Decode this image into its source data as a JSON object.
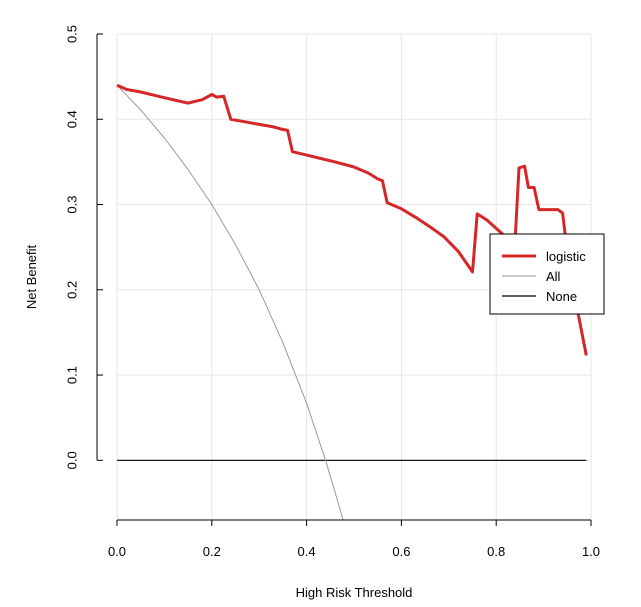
{
  "chart_data": {
    "type": "line",
    "title": "",
    "xlabel": "High Risk Threshold",
    "ylabel": "Net Benefit",
    "xlim": [
      0,
      1
    ],
    "ylim": [
      -0.07,
      0.5
    ],
    "x_ticks": [
      "0.0",
      "0.2",
      "0.4",
      "0.6",
      "0.8",
      "1.0"
    ],
    "y_ticks": [
      "0.0",
      "0.1",
      "0.2",
      "0.3",
      "0.4",
      "0.5"
    ],
    "grid": true,
    "legend_position": "right",
    "series": [
      {
        "name": "logistic",
        "color": "#d62728",
        "points": [
          [
            0.0,
            0.44
          ],
          [
            0.02,
            0.435
          ],
          [
            0.05,
            0.432
          ],
          [
            0.08,
            0.428
          ],
          [
            0.11,
            0.424
          ],
          [
            0.15,
            0.419
          ],
          [
            0.18,
            0.423
          ],
          [
            0.2,
            0.429
          ],
          [
            0.21,
            0.426
          ],
          [
            0.225,
            0.427
          ],
          [
            0.24,
            0.4
          ],
          [
            0.27,
            0.397
          ],
          [
            0.3,
            0.394
          ],
          [
            0.33,
            0.391
          ],
          [
            0.35,
            0.388
          ],
          [
            0.36,
            0.387
          ],
          [
            0.37,
            0.362
          ],
          [
            0.4,
            0.358
          ],
          [
            0.43,
            0.354
          ],
          [
            0.46,
            0.35
          ],
          [
            0.5,
            0.344
          ],
          [
            0.53,
            0.337
          ],
          [
            0.55,
            0.33
          ],
          [
            0.56,
            0.328
          ],
          [
            0.57,
            0.302
          ],
          [
            0.6,
            0.295
          ],
          [
            0.63,
            0.285
          ],
          [
            0.66,
            0.274
          ],
          [
            0.69,
            0.262
          ],
          [
            0.72,
            0.245
          ],
          [
            0.75,
            0.221
          ],
          [
            0.76,
            0.289
          ],
          [
            0.78,
            0.282
          ],
          [
            0.8,
            0.272
          ],
          [
            0.82,
            0.262
          ],
          [
            0.84,
            0.26
          ],
          [
            0.848,
            0.343
          ],
          [
            0.86,
            0.345
          ],
          [
            0.868,
            0.32
          ],
          [
            0.88,
            0.32
          ],
          [
            0.89,
            0.294
          ],
          [
            0.91,
            0.294
          ],
          [
            0.93,
            0.294
          ],
          [
            0.94,
            0.29
          ],
          [
            0.95,
            0.244
          ],
          [
            0.97,
            0.18
          ],
          [
            0.99,
            0.123
          ]
        ]
      },
      {
        "name": "All",
        "color": "#999999",
        "points": [
          [
            0.0,
            0.44
          ],
          [
            0.05,
            0.411
          ],
          [
            0.1,
            0.378
          ],
          [
            0.15,
            0.341
          ],
          [
            0.2,
            0.3
          ],
          [
            0.25,
            0.253
          ],
          [
            0.3,
            0.2
          ],
          [
            0.35,
            0.138
          ],
          [
            0.4,
            0.067
          ],
          [
            0.44,
            0.0
          ],
          [
            0.46,
            -0.037
          ],
          [
            0.477,
            -0.07
          ]
        ]
      },
      {
        "name": "None",
        "color": "#000000",
        "points": [
          [
            0.0,
            0.0
          ],
          [
            0.99,
            0.0
          ]
        ]
      }
    ]
  }
}
